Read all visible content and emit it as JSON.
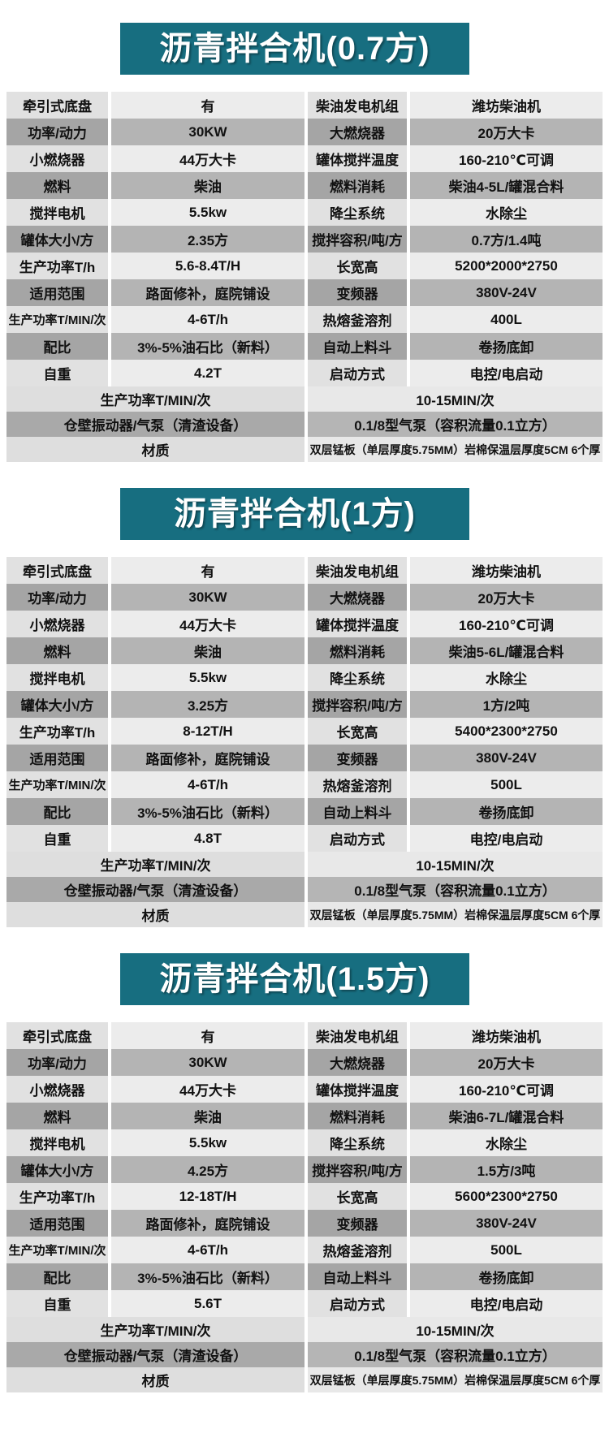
{
  "colors": {
    "banner_teal": "#176e80",
    "row_light_label": "#e1e1e1",
    "row_light_value": "#ececec",
    "row_dark_label": "#a5a5a5",
    "row_dark_value": "#b4b4b4",
    "text": "#111111"
  },
  "sections": [
    {
      "title": "沥青拌合机(0.7方)",
      "rows": [
        [
          "牵引式底盘",
          "有",
          "柴油发电机组",
          "潍坊柴油机"
        ],
        [
          "功率/动力",
          "30KW",
          "大燃烧器",
          "20万大卡"
        ],
        [
          "小燃烧器",
          "44万大卡",
          "罐体搅拌温度",
          "160-210℃可调"
        ],
        [
          "燃料",
          "柴油",
          "燃料消耗",
          "柴油4-5L/罐混合料"
        ],
        [
          "搅拌电机",
          "5.5kw",
          "降尘系统",
          "水除尘"
        ],
        [
          "罐体大小/方",
          "2.35方",
          "搅拌容积/吨/方",
          "0.7方/1.4吨"
        ],
        [
          "生产功率T/h",
          "5.6-8.4T/H",
          "长宽高",
          "5200*2000*2750"
        ],
        [
          "适用范围",
          "路面修补，庭院铺设",
          "变频器",
          "380V-24V"
        ],
        [
          "生产功率T/MIN/次",
          "4-6T/h",
          "热熔釜溶剂",
          "400L"
        ],
        [
          "配比",
          "3%-5%油石比（新料）",
          "自动上料斗",
          "卷扬底卸"
        ],
        [
          "自重",
          "4.2T",
          "启动方式",
          "电控/电启动"
        ]
      ],
      "span_rows": [
        [
          "生产功率T/MIN/次",
          "10-15MIN/次"
        ],
        [
          "仓壁振动器/气泵（清渣设备）",
          "0.1/8型气泵（容积流量0.1立方）"
        ],
        [
          "材质",
          "双层锰板（单层厚度5.75MM）岩棉保温层厚度5CM 6个厚"
        ]
      ]
    },
    {
      "title": "沥青拌合机(1方)",
      "rows": [
        [
          "牵引式底盘",
          "有",
          "柴油发电机组",
          "潍坊柴油机"
        ],
        [
          "功率/动力",
          "30KW",
          "大燃烧器",
          "20万大卡"
        ],
        [
          "小燃烧器",
          "44万大卡",
          "罐体搅拌温度",
          "160-210℃可调"
        ],
        [
          "燃料",
          "柴油",
          "燃料消耗",
          "柴油5-6L/罐混合料"
        ],
        [
          "搅拌电机",
          "5.5kw",
          "降尘系统",
          "水除尘"
        ],
        [
          "罐体大小/方",
          "3.25方",
          "搅拌容积/吨/方",
          "1方/2吨"
        ],
        [
          "生产功率T/h",
          "8-12T/H",
          "长宽高",
          "5400*2300*2750"
        ],
        [
          "适用范围",
          "路面修补，庭院铺设",
          "变频器",
          "380V-24V"
        ],
        [
          "生产功率T/MIN/次",
          "4-6T/h",
          "热熔釜溶剂",
          "500L"
        ],
        [
          "配比",
          "3%-5%油石比（新料）",
          "自动上料斗",
          "卷扬底卸"
        ],
        [
          "自重",
          "4.8T",
          "启动方式",
          "电控/电启动"
        ]
      ],
      "span_rows": [
        [
          "生产功率T/MIN/次",
          "10-15MIN/次"
        ],
        [
          "仓壁振动器/气泵（清渣设备）",
          "0.1/8型气泵（容积流量0.1立方）"
        ],
        [
          "材质",
          "双层锰板（单层厚度5.75MM）岩棉保温层厚度5CM 6个厚"
        ]
      ]
    },
    {
      "title": "沥青拌合机(1.5方)",
      "rows": [
        [
          "牵引式底盘",
          "有",
          "柴油发电机组",
          "潍坊柴油机"
        ],
        [
          "功率/动力",
          "30KW",
          "大燃烧器",
          "20万大卡"
        ],
        [
          "小燃烧器",
          "44万大卡",
          "罐体搅拌温度",
          "160-210℃可调"
        ],
        [
          "燃料",
          "柴油",
          "燃料消耗",
          "柴油6-7L/罐混合料"
        ],
        [
          "搅拌电机",
          "5.5kw",
          "降尘系统",
          "水除尘"
        ],
        [
          "罐体大小/方",
          "4.25方",
          "搅拌容积/吨/方",
          "1.5方/3吨"
        ],
        [
          "生产功率T/h",
          "12-18T/H",
          "长宽高",
          "5600*2300*2750"
        ],
        [
          "适用范围",
          "路面修补，庭院铺设",
          "变频器",
          "380V-24V"
        ],
        [
          "生产功率T/MIN/次",
          "4-6T/h",
          "热熔釜溶剂",
          "500L"
        ],
        [
          "配比",
          "3%-5%油石比（新料）",
          "自动上料斗",
          "卷扬底卸"
        ],
        [
          "自重",
          "5.6T",
          "启动方式",
          "电控/电启动"
        ]
      ],
      "span_rows": [
        [
          "生产功率T/MIN/次",
          "10-15MIN/次"
        ],
        [
          "仓壁振动器/气泵（清渣设备）",
          "0.1/8型气泵（容积流量0.1立方）"
        ],
        [
          "材质",
          "双层锰板（单层厚度5.75MM）岩棉保温层厚度5CM 6个厚"
        ]
      ]
    }
  ]
}
